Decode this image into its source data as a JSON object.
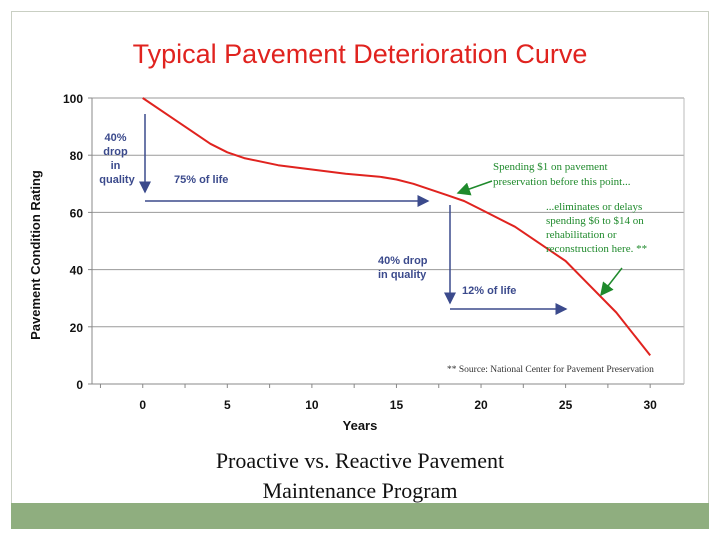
{
  "chart_data": {
    "type": "line",
    "title": "Typical Pavement Deterioration Curve",
    "xlabel": "Years",
    "ylabel": "Pavement Condition Rating",
    "xlim": [
      -3,
      32
    ],
    "ylim": [
      0,
      100
    ],
    "xticks": [
      0,
      5,
      10,
      15,
      20,
      25,
      30
    ],
    "yticks": [
      0,
      20,
      40,
      60,
      80,
      100
    ],
    "grid": "horizontal",
    "series": [
      {
        "color": "#e0231f",
        "x": [
          0,
          2,
          4,
          5,
          6,
          8,
          10,
          12,
          14,
          15,
          16,
          18,
          19,
          20,
          22,
          24,
          25,
          26,
          28,
          30
        ],
        "y": [
          100,
          92,
          84,
          81,
          79,
          76.5,
          75,
          73.5,
          72.5,
          71.5,
          70,
          66,
          64,
          61,
          55,
          47,
          43,
          37,
          25,
          10
        ]
      }
    ],
    "annotations": {
      "drop1": [
        "40%",
        "drop",
        "in",
        "quality"
      ],
      "life75": "75% of life",
      "drop2": [
        "40% drop",
        "in quality"
      ],
      "life12": "12% of life",
      "spending1": [
        "Spending $1 on pavement",
        "preservation before this point..."
      ],
      "spending2": [
        "...eliminates or delays",
        "spending $6 to $14 on",
        "rehabilitation or",
        "reconstruction here.  **"
      ],
      "source": "** Source: National Center for Pavement Preservation"
    },
    "annotation_colors": {
      "blue": "#3b4a8c",
      "green": "#1f8a2c",
      "red": "#e0231f",
      "title": "#e0231f"
    }
  },
  "caption": [
    "Proactive vs. Reactive Pavement",
    "Maintenance Program"
  ]
}
